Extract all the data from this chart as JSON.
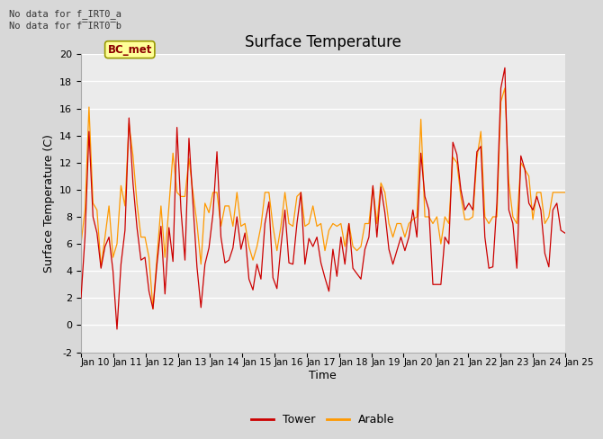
{
  "title": "Surface Temperature",
  "xlabel": "Time",
  "ylabel": "Surface Temperature (C)",
  "ylim": [
    -2,
    20
  ],
  "yticks": [
    -2,
    0,
    2,
    4,
    6,
    8,
    10,
    12,
    14,
    16,
    18,
    20
  ],
  "tower_color": "#cc0000",
  "arable_color": "#ff9900",
  "bc_met_box_color": "#ffff99",
  "bc_met_text_color": "#8b0000",
  "bc_met_border_color": "#999900",
  "no_data_text1": "No data for f_IRT0_a",
  "no_data_text2": "No data for f̅IRT0̅b",
  "legend_tower": "Tower",
  "legend_arable": "Arable",
  "x_tick_labels": [
    "Jan 10",
    "Jan 11",
    "Jan 12",
    "Jan 13",
    "Jan 14",
    "Jan 15",
    "Jan 16",
    "Jan 17",
    "Jan 18",
    "Jan 19",
    "Jan 20",
    "Jan 21",
    "Jan 22",
    "Jan 23",
    "Jan 24",
    "Jan 25"
  ],
  "background_color": "#d8d8d8",
  "plot_bg_color": "#ebebeb",
  "grid_color": "#ffffff",
  "tower_data": [
    2.0,
    6.5,
    14.3,
    8.0,
    6.8,
    4.2,
    5.8,
    6.5,
    4.0,
    -0.3,
    4.5,
    7.0,
    15.3,
    10.5,
    7.2,
    4.8,
    5.0,
    2.5,
    1.2,
    4.5,
    7.3,
    2.3,
    7.2,
    4.7,
    14.6,
    8.5,
    4.8,
    13.8,
    9.0,
    4.3,
    1.3,
    4.5,
    5.7,
    8.2,
    12.8,
    6.5,
    4.6,
    4.8,
    5.7,
    8.0,
    5.6,
    6.8,
    3.4,
    2.6,
    4.5,
    3.4,
    7.5,
    9.1,
    3.5,
    2.7,
    5.8,
    8.5,
    4.6,
    4.5,
    7.5,
    9.8,
    4.5,
    6.4,
    5.8,
    6.5,
    4.6,
    3.5,
    2.5,
    5.6,
    3.6,
    6.5,
    4.5,
    7.5,
    4.2,
    3.8,
    3.4,
    5.6,
    6.5,
    10.3,
    6.5,
    10.2,
    8.3,
    5.6,
    4.5,
    5.5,
    6.5,
    5.5,
    6.5,
    8.5,
    6.5,
    12.7,
    9.5,
    8.5,
    3.0,
    3.0,
    3.0,
    6.5,
    6.0,
    13.5,
    12.6,
    10.0,
    8.5,
    9.0,
    8.5,
    12.8,
    13.2,
    6.5,
    4.2,
    4.3,
    9.0,
    17.5,
    19.0,
    8.5,
    7.5,
    4.2,
    12.5,
    11.5,
    9.0,
    8.5,
    9.5,
    8.5,
    5.3,
    4.3,
    8.5,
    9.0,
    7.0,
    6.8
  ],
  "arable_data": [
    6.0,
    8.5,
    16.1,
    9.0,
    8.5,
    4.3,
    6.5,
    8.8,
    5.0,
    6.0,
    10.3,
    8.8,
    14.9,
    12.5,
    9.0,
    6.5,
    6.5,
    5.0,
    1.2,
    5.0,
    8.8,
    5.0,
    8.8,
    12.7,
    9.8,
    9.5,
    9.5,
    12.3,
    9.8,
    7.5,
    4.5,
    9.0,
    8.3,
    9.8,
    9.8,
    7.3,
    8.8,
    8.8,
    7.3,
    9.8,
    7.3,
    7.5,
    5.8,
    4.8,
    5.8,
    7.3,
    9.8,
    9.8,
    7.3,
    5.5,
    7.3,
    9.8,
    7.5,
    7.3,
    9.5,
    9.8,
    7.3,
    7.5,
    8.8,
    7.3,
    7.5,
    5.5,
    7.0,
    7.5,
    7.3,
    7.5,
    5.8,
    7.5,
    5.8,
    5.5,
    5.8,
    7.5,
    7.5,
    10.2,
    7.5,
    10.5,
    9.8,
    7.5,
    6.5,
    7.5,
    7.5,
    6.5,
    7.5,
    7.8,
    8.0,
    15.2,
    8.0,
    8.0,
    7.5,
    8.0,
    6.0,
    8.0,
    7.5,
    12.4,
    12.0,
    9.5,
    7.8,
    7.8,
    8.0,
    12.3,
    14.3,
    8.0,
    7.5,
    8.0,
    8.0,
    16.5,
    17.5,
    10.5,
    8.0,
    7.5,
    12.0,
    11.5,
    11.0,
    7.8,
    9.8,
    9.8,
    7.5,
    8.0,
    9.8,
    9.8,
    9.8,
    9.8
  ]
}
